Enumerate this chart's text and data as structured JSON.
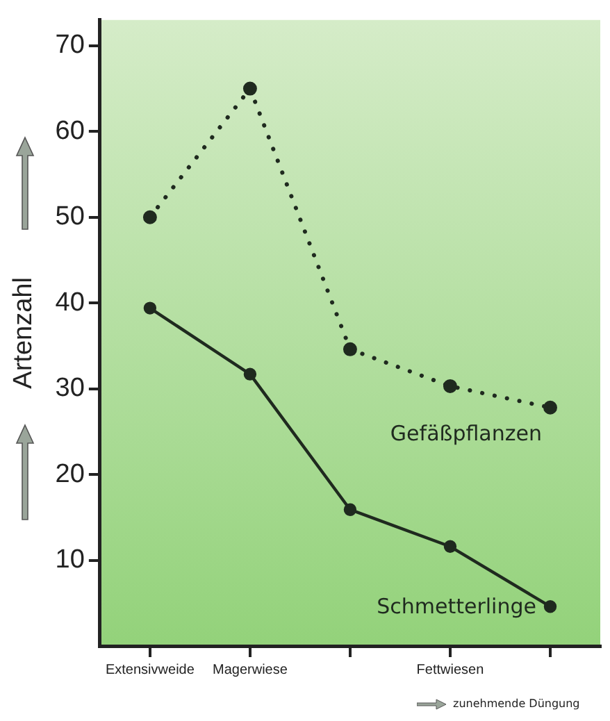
{
  "chart_data": {
    "type": "line",
    "ylabel": "Artenzahl",
    "categories": [
      "Extensivweide",
      "Magerwiese",
      null,
      "Fettwiesen",
      null
    ],
    "series": [
      {
        "name": "Gefäßpflanzen",
        "color": "#1f2a1f",
        "values": [
          50,
          65,
          34.6,
          30.3,
          27.8
        ],
        "line_style": "dotted"
      },
      {
        "name": "Schmetterlinge",
        "color": "#1f2a1f",
        "values": [
          39.4,
          31.7,
          15.9,
          11.6,
          4.6
        ],
        "line_style": "solid"
      }
    ],
    "ylim": [
      0,
      73
    ],
    "yticks": [
      10,
      20,
      30,
      40,
      50,
      60,
      70
    ],
    "grid": false,
    "legend": false,
    "marker": "circle",
    "annotations": [
      "zunehmende Düngung"
    ]
  }
}
